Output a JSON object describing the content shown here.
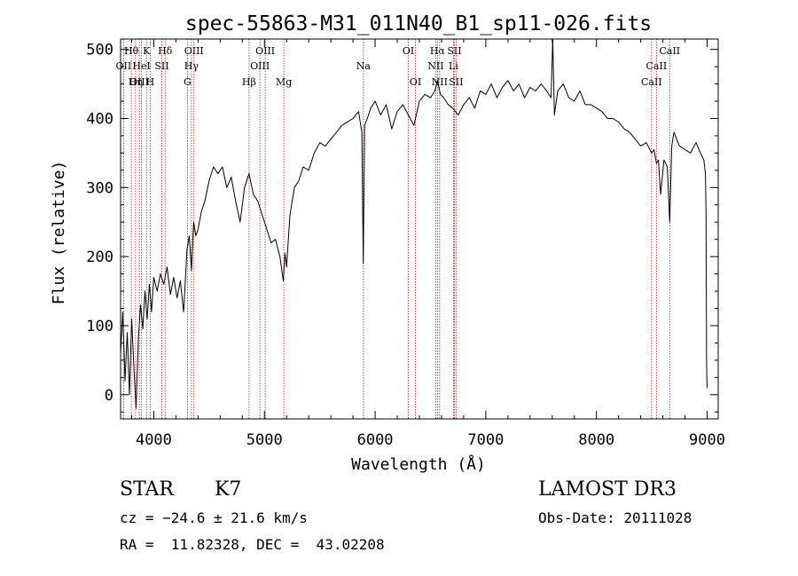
{
  "chart_data": {
    "type": "line",
    "title": "spec-55863-M31_011N40_B1_sp11-026.fits",
    "xlabel": "Wavelength (Å)",
    "ylabel": "Flux (relative)",
    "xlim": [
      3700,
      9100
    ],
    "ylim": [
      -35,
      515
    ],
    "xticks": [
      4000,
      5000,
      6000,
      7000,
      8000,
      9000
    ],
    "xtick_labels": [
      "4000",
      "5000",
      "6000",
      "7000",
      "8000",
      "9000"
    ],
    "yticks": [
      0,
      100,
      200,
      300,
      400,
      500
    ],
    "ytick_labels": [
      "0",
      "100",
      "200",
      "300",
      "400",
      "500"
    ],
    "grid": false,
    "series": [
      {
        "name": "flux",
        "x": [
          3700,
          3720,
          3740,
          3760,
          3780,
          3800,
          3820,
          3840,
          3860,
          3880,
          3900,
          3920,
          3940,
          3960,
          3980,
          4000,
          4030,
          4060,
          4090,
          4120,
          4150,
          4180,
          4210,
          4240,
          4270,
          4300,
          4320,
          4340,
          4360,
          4380,
          4400,
          4430,
          4460,
          4500,
          4540,
          4580,
          4620,
          4660,
          4700,
          4740,
          4780,
          4820,
          4860,
          4900,
          4940,
          4980,
          5020,
          5060,
          5100,
          5140,
          5170,
          5185,
          5200,
          5230,
          5270,
          5310,
          5350,
          5400,
          5450,
          5500,
          5550,
          5600,
          5650,
          5700,
          5750,
          5800,
          5850,
          5880,
          5893,
          5905,
          5930,
          5960,
          6000,
          6050,
          6100,
          6150,
          6200,
          6250,
          6300,
          6350,
          6400,
          6450,
          6500,
          6540,
          6563,
          6590,
          6620,
          6660,
          6700,
          6750,
          6800,
          6850,
          6900,
          6950,
          7000,
          7050,
          7100,
          7150,
          7200,
          7250,
          7300,
          7350,
          7400,
          7450,
          7500,
          7550,
          7590,
          7605,
          7620,
          7650,
          7700,
          7750,
          7800,
          7850,
          7900,
          7950,
          8000,
          8050,
          8100,
          8150,
          8200,
          8250,
          8300,
          8350,
          8400,
          8450,
          8498,
          8520,
          8542,
          8560,
          8580,
          8610,
          8640,
          8662,
          8680,
          8700,
          8750,
          8800,
          8850,
          8900,
          8940,
          8970,
          8985,
          8990,
          8995,
          9000
        ],
        "y": [
          60,
          120,
          20,
          90,
          0,
          110,
          40,
          -20,
          80,
          130,
          95,
          150,
          110,
          160,
          120,
          170,
          150,
          175,
          160,
          185,
          145,
          170,
          140,
          165,
          120,
          210,
          230,
          180,
          250,
          230,
          240,
          265,
          280,
          310,
          330,
          320,
          330,
          300,
          315,
          280,
          250,
          300,
          320,
          290,
          280,
          260,
          240,
          220,
          225,
          200,
          165,
          205,
          185,
          260,
          300,
          310,
          330,
          325,
          350,
          365,
          360,
          370,
          380,
          390,
          395,
          400,
          410,
          380,
          190,
          390,
          400,
          415,
          425,
          405,
          420,
          385,
          410,
          420,
          405,
          390,
          425,
          435,
          430,
          440,
          455,
          435,
          430,
          420,
          415,
          405,
          420,
          430,
          415,
          440,
          435,
          450,
          430,
          445,
          455,
          440,
          450,
          430,
          445,
          440,
          450,
          440,
          430,
          515,
          405,
          440,
          450,
          430,
          425,
          440,
          420,
          420,
          415,
          410,
          400,
          400,
          395,
          385,
          380,
          370,
          360,
          365,
          350,
          355,
          335,
          340,
          290,
          340,
          330,
          250,
          360,
          380,
          360,
          355,
          350,
          365,
          350,
          340,
          320,
          260,
          40,
          10
        ]
      }
    ],
    "lines": [
      {
        "label": "Hθ",
        "wl": 3797,
        "row": 1
      },
      {
        "label": "OII",
        "wl": 3727,
        "row": 2
      },
      {
        "label": "OIII",
        "wl": 3869,
        "row": 3
      },
      {
        "label": "K",
        "wl": 3934,
        "row": 1
      },
      {
        "label": "HeI",
        "wl": 3889,
        "row": 2
      },
      {
        "label": "Hη",
        "wl": 3835,
        "row": 3
      },
      {
        "label": "H",
        "wl": 3968,
        "row": 3
      },
      {
        "label": "Hδ",
        "wl": 4102,
        "row": 1
      },
      {
        "label": "SII",
        "wl": 4072,
        "row": 2
      },
      {
        "label": "OIII",
        "wl": 4363,
        "row": 1
      },
      {
        "label": "Hγ",
        "wl": 4340,
        "row": 2
      },
      {
        "label": "G",
        "wl": 4304,
        "row": 3
      },
      {
        "label": "Hβ",
        "wl": 4861,
        "row": 3
      },
      {
        "label": "OIII",
        "wl": 5007,
        "row": 1
      },
      {
        "label": "OIII",
        "wl": 4959,
        "row": 2
      },
      {
        "label": "Mg",
        "wl": 5175,
        "row": 3
      },
      {
        "label": "Na",
        "wl": 5894,
        "row": 2
      },
      {
        "label": "OI",
        "wl": 6300,
        "row": 1
      },
      {
        "label": "OI",
        "wl": 6364,
        "row": 3
      },
      {
        "label": "Hα",
        "wl": 6563,
        "row": 1
      },
      {
        "label": "SII",
        "wl": 6716,
        "row": 1
      },
      {
        "label": "NII",
        "wl": 6548,
        "row": 2
      },
      {
        "label": "Li",
        "wl": 6708,
        "row": 2
      },
      {
        "label": "NII",
        "wl": 6583,
        "row": 3
      },
      {
        "label": "SII",
        "wl": 6731,
        "row": 3
      },
      {
        "label": "CaII",
        "wl": 8662,
        "row": 1
      },
      {
        "label": "CaII",
        "wl": 8542,
        "row": 2
      },
      {
        "label": "CaII",
        "wl": 8498,
        "row": 3
      }
    ]
  },
  "info": {
    "class_label": "STAR",
    "subclass": "K7",
    "survey": "LAMOST DR3",
    "cz": "cz = −24.6 ± 21.6 km/s",
    "obs_date": "Obs-Date: 20111028",
    "coords": "RA =  11.82328, DEC =  43.02208"
  }
}
